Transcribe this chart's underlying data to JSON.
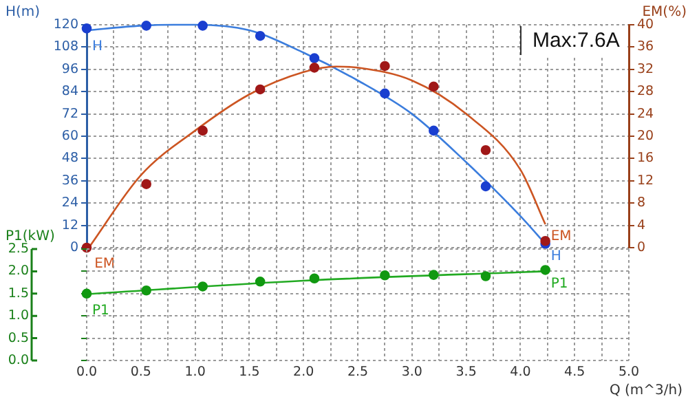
{
  "chart_data": [
    {
      "type": "line",
      "ylabel": "H(m)",
      "y2label": "EM(%)",
      "annotations": [
        "Max:7.6A"
      ],
      "xlim": [
        0,
        5
      ],
      "xticks": [
        {
          "value": 0,
          "label": null
        },
        {
          "value": 0.25,
          "label": null
        },
        {
          "value": 0.5,
          "label": null
        },
        {
          "value": 0.75,
          "label": null
        },
        {
          "value": 1,
          "label": null
        },
        {
          "value": 1.25,
          "label": null
        },
        {
          "value": 1.5,
          "label": null
        },
        {
          "value": 1.75,
          "label": null
        },
        {
          "value": 2,
          "label": null
        },
        {
          "value": 2.25,
          "label": null
        },
        {
          "value": 2.5,
          "label": null
        },
        {
          "value": 2.75,
          "label": null
        },
        {
          "value": 3,
          "label": null
        },
        {
          "value": 3.25,
          "label": null
        },
        {
          "value": 3.5,
          "label": null
        },
        {
          "value": 3.75,
          "label": null
        },
        {
          "value": 4,
          "label": null
        },
        {
          "value": 4.25,
          "label": null
        },
        {
          "value": 4.5,
          "label": null
        },
        {
          "value": 4.75,
          "label": null
        },
        {
          "value": 5,
          "label": null
        }
      ],
      "ylim": [
        0,
        120
      ],
      "yticks": [
        0,
        12,
        24,
        36,
        48,
        60,
        72,
        84,
        96,
        108,
        120
      ],
      "y2lim": [
        0,
        40
      ],
      "y2ticks": [
        0,
        4,
        8,
        12,
        16,
        20,
        24,
        28,
        32,
        36,
        40
      ],
      "grid": true,
      "tick_labels": "y",
      "series": [
        {
          "name": "H",
          "type": "line",
          "color": "#3b7ddd",
          "marker": "none",
          "x": [
            0,
            0.5,
            0.8,
            1.0,
            1.5,
            2.0,
            2.5,
            3.0,
            3.5,
            4.0,
            4.23
          ],
          "values": [
            117,
            119.5,
            120,
            120,
            117,
            105,
            90,
            72,
            46,
            17,
            2
          ]
        },
        {
          "type": "scatter",
          "color": "#1a3fd0",
          "marker": "circle",
          "x": [
            0,
            0.55,
            1.07,
            1.6,
            2.1,
            2.75,
            3.2,
            3.68,
            4.23
          ],
          "values": [
            118,
            119.5,
            119.5,
            114,
            102,
            83,
            63,
            33,
            2
          ]
        },
        {
          "name": "EM",
          "type": "line",
          "axis": "y2",
          "color": "#cc5522",
          "marker": "none",
          "x": [
            0.02,
            0.5,
            1.0,
            1.5,
            2.0,
            2.3,
            2.5,
            3.0,
            3.5,
            4.0,
            4.23
          ],
          "values": [
            0,
            13,
            21,
            27.5,
            31.5,
            32.5,
            32.3,
            30,
            24,
            14,
            4.2
          ]
        },
        {
          "type": "scatter",
          "axis": "y2",
          "color": "#a01818",
          "marker": "circle",
          "x": [
            0,
            0.55,
            1.07,
            1.6,
            2.1,
            2.75,
            3.2,
            3.68,
            4.23
          ],
          "values": [
            0,
            11.4,
            21,
            28.4,
            32.3,
            32.6,
            28.9,
            17.5,
            1.2
          ]
        }
      ]
    },
    {
      "type": "line",
      "ylabel": "P1(kW)",
      "xlabel": "Q (m^3/h)",
      "xlim": [
        0,
        5
      ],
      "xticks": [
        {
          "value": 0,
          "label": "0.0"
        },
        {
          "value": 0.25,
          "label": null
        },
        {
          "value": 0.5,
          "label": "0.5"
        },
        {
          "value": 0.75,
          "label": null
        },
        {
          "value": 1,
          "label": "1.0"
        },
        {
          "value": 1.25,
          "label": null
        },
        {
          "value": 1.5,
          "label": "1.5"
        },
        {
          "value": 1.75,
          "label": null
        },
        {
          "value": 2,
          "label": "2.0"
        },
        {
          "value": 2.25,
          "label": null
        },
        {
          "value": 2.5,
          "label": "2.5"
        },
        {
          "value": 2.75,
          "label": null
        },
        {
          "value": 3,
          "label": "3.0"
        },
        {
          "value": 3.25,
          "label": null
        },
        {
          "value": 3.5,
          "label": "3.5"
        },
        {
          "value": 3.75,
          "label": null
        },
        {
          "value": 4,
          "label": "4.0"
        },
        {
          "value": 4.25,
          "label": null
        },
        {
          "value": 4.5,
          "label": "4.5"
        },
        {
          "value": 4.75,
          "label": null
        },
        {
          "value": 5,
          "label": "5.0"
        }
      ],
      "ylim": [
        0,
        2.5
      ],
      "yticks": [
        {
          "value": 0,
          "label": "0.0"
        },
        {
          "value": 0.5,
          "label": "0.5"
        },
        {
          "value": 1,
          "label": "1.0"
        },
        {
          "value": 1.5,
          "label": "1.5"
        },
        {
          "value": 2,
          "label": "2.0"
        },
        {
          "value": 2.5,
          "label": "2.5"
        }
      ],
      "grid": true,
      "series": [
        {
          "name": "P1",
          "type": "line",
          "color": "#22aa22",
          "marker": "none",
          "x": [
            0,
            2.0,
            4.23
          ],
          "values": [
            1.49,
            1.79,
            2.0
          ]
        },
        {
          "type": "scatter",
          "color": "#119911",
          "marker": "circle",
          "x": [
            0,
            0.55,
            1.07,
            1.6,
            2.1,
            2.75,
            3.2,
            3.68,
            4.23
          ],
          "values": [
            1.5,
            1.57,
            1.66,
            1.77,
            1.84,
            1.91,
            1.92,
            1.89,
            2.03
          ]
        }
      ]
    }
  ]
}
